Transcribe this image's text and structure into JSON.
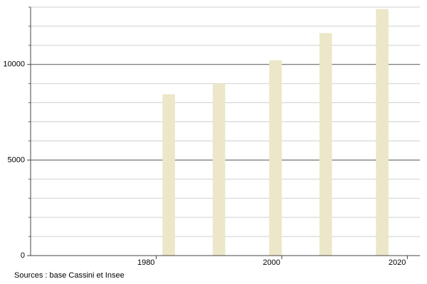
{
  "chart_data": {
    "type": "bar",
    "x": [
      1982,
      1990,
      1999,
      2007,
      2016
    ],
    "values": [
      8440,
      9000,
      10220,
      11640,
      12900
    ],
    "color": "#ece7c8",
    "xlim": [
      1960,
      2022
    ],
    "xticks": [
      1980,
      2000,
      2020
    ],
    "ylim": [
      0,
      13000
    ],
    "yticks": [
      0,
      5000,
      10000
    ],
    "minor_yticks": [
      1000,
      2000,
      3000,
      4000,
      6000,
      7000,
      8000,
      9000,
      11000,
      12000,
      13000
    ],
    "bar_width": 2,
    "grid": true,
    "source": "Sources : base Cassini et Insee"
  }
}
